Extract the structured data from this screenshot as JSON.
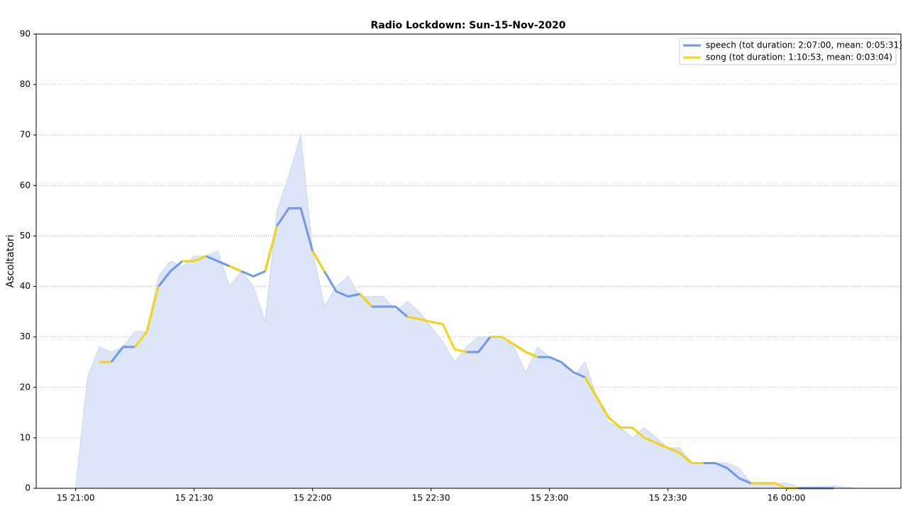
{
  "chart_data": {
    "type": "line",
    "title": "Radio Lockdown: Sun-15-Nov-2020",
    "y_label": "Ascoltatori",
    "x": [
      "15 21:00",
      "15 21:03",
      "15 21:06",
      "15 21:09",
      "15 21:12",
      "15 21:15",
      "15 21:18",
      "15 21:21",
      "15 21:24",
      "15 21:27",
      "15 21:30",
      "15 21:33",
      "15 21:36",
      "15 21:39",
      "15 21:42",
      "15 21:45",
      "15 21:48",
      "15 21:51",
      "15 21:54",
      "15 21:57",
      "15 22:00",
      "15 22:03",
      "15 22:06",
      "15 22:09",
      "15 22:12",
      "15 22:15",
      "15 22:18",
      "15 22:21",
      "15 22:24",
      "15 22:27",
      "15 22:30",
      "15 22:33",
      "15 22:36",
      "15 22:39",
      "15 22:42",
      "15 22:45",
      "15 22:48",
      "15 22:51",
      "15 22:54",
      "15 22:57",
      "15 23:00",
      "15 23:03",
      "15 23:06",
      "15 23:09",
      "15 23:12",
      "15 23:15",
      "15 23:18",
      "15 23:21",
      "15 23:24",
      "15 23:27",
      "15 23:30",
      "15 23:33",
      "15 23:36",
      "15 23:39",
      "15 23:42",
      "15 23:45",
      "15 23:48",
      "15 23:51",
      "15 23:54",
      "15 23:57",
      "16 00:00",
      "16 00:03",
      "16 00:06",
      "16 00:09",
      "16 00:12",
      "16 00:15",
      "16 00:18"
    ],
    "area": {
      "color": "#dce6f8",
      "values": [
        0,
        22,
        28,
        27,
        28,
        31,
        31,
        42,
        45,
        44,
        46,
        46,
        47,
        40,
        43,
        40,
        33,
        55,
        62,
        70,
        47,
        36,
        40,
        42,
        38,
        38,
        38,
        35,
        37,
        35,
        32,
        29,
        25,
        28,
        30,
        30,
        30,
        28,
        23,
        28,
        26,
        25,
        22,
        25,
        18,
        13,
        12,
        10,
        12,
        10,
        8,
        8,
        5,
        5,
        5,
        5,
        4,
        1,
        1,
        1,
        1,
        0.3,
        0.3,
        0.3,
        0.5,
        0.2,
        0
      ]
    },
    "series": [
      {
        "name": "speech (tot duration: 2:07:00, mean: 0:05:31)",
        "color": "#6f97ea",
        "values": [
          null,
          null,
          null,
          25,
          28,
          28,
          null,
          40,
          43,
          45,
          null,
          46,
          45,
          44,
          43,
          42,
          43,
          52,
          55.5,
          55.5,
          47,
          43,
          39,
          38,
          38.5,
          36,
          36,
          36,
          34,
          null,
          null,
          null,
          null,
          27,
          27,
          30,
          null,
          28.5,
          27,
          26,
          26,
          25,
          23,
          22,
          18,
          14,
          12,
          12,
          null,
          9,
          8,
          7,
          5,
          5,
          5,
          4,
          2,
          1,
          1,
          1,
          null,
          0,
          0,
          0,
          0,
          null,
          null
        ]
      },
      {
        "name": "song (tot duration: 1:10:53, mean: 0:03:04)",
        "color": "#f8d30f",
        "values": [
          null,
          null,
          25,
          25,
          null,
          28,
          31,
          40,
          null,
          45,
          45,
          46,
          null,
          44,
          43,
          null,
          43,
          52,
          null,
          null,
          47,
          43,
          null,
          null,
          38.5,
          36,
          null,
          null,
          34,
          33.5,
          33,
          32.5,
          27.5,
          27,
          null,
          30,
          30,
          28.5,
          27,
          26,
          null,
          null,
          null,
          22,
          18,
          14,
          12,
          12,
          10,
          9,
          8,
          7,
          5,
          5,
          null,
          null,
          null,
          1,
          1,
          1,
          0,
          0,
          null,
          null,
          0,
          null,
          null
        ]
      }
    ],
    "xlim": [
      "15 20:50",
      "16 00:29"
    ],
    "xticks": [
      "15 21:00",
      "15 21:30",
      "15 22:00",
      "15 22:30",
      "15 23:00",
      "15 23:30",
      "16 00:00"
    ],
    "ylim": [
      0,
      90
    ],
    "yticks": [
      0,
      10,
      20,
      30,
      40,
      50,
      60,
      70,
      80,
      90
    ],
    "grid": true,
    "legend": "upper right"
  }
}
